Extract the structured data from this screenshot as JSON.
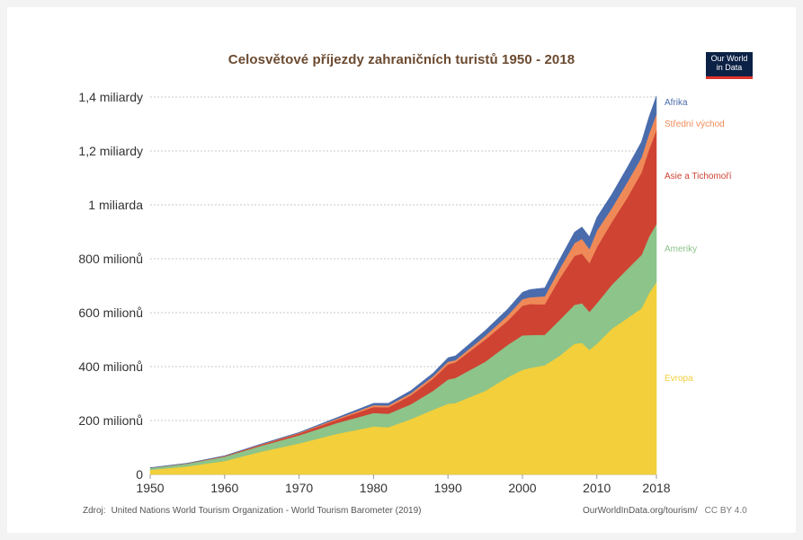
{
  "logo": {
    "line1": "Our World",
    "line2": "in Data"
  },
  "source": {
    "label": "Zdroj:",
    "text": "United Nations World Tourism Organization - World Tourism Barometer (2019)"
  },
  "credit": {
    "url": "OurWorldInData.org/tourism/",
    "license": "CC BY 4.0"
  },
  "chart_data": {
    "type": "area",
    "stacked": true,
    "title": "Celosvětové příjezdy zahraničních turistů 1950 - 2018",
    "xlabel": "",
    "ylabel": "",
    "xlim": [
      1950,
      2018
    ],
    "ylim": [
      0,
      1400000000
    ],
    "grid": true,
    "legend": "right-inline",
    "x": [
      1950,
      1955,
      1960,
      1965,
      1970,
      1975,
      1980,
      1982,
      1985,
      1988,
      1990,
      1991,
      1995,
      1998,
      2000,
      2001,
      2003,
      2005,
      2007,
      2008,
      2009,
      2010,
      2012,
      2014,
      2016,
      2017,
      2018
    ],
    "x_ticks": [
      1950,
      1960,
      1970,
      1980,
      1990,
      2000,
      2010,
      2018
    ],
    "y_ticks": [
      {
        "value": 0,
        "label": "0"
      },
      {
        "value": 200000000,
        "label": "200 milionů"
      },
      {
        "value": 400000000,
        "label": "400 milionů"
      },
      {
        "value": 600000000,
        "label": "600 milionů"
      },
      {
        "value": 800000000,
        "label": "800 milionů"
      },
      {
        "value": 1000000000,
        "label": "1 miliarda"
      },
      {
        "value": 1200000000,
        "label": "1,2 miliardy"
      },
      {
        "value": 1400000000,
        "label": "1,4 miliardy"
      }
    ],
    "series": [
      {
        "name": "Evropa",
        "color": "#f2cf3b",
        "values": [
          17000000,
          30000000,
          50000000,
          85000000,
          115000000,
          150000000,
          178000000,
          175000000,
          205000000,
          240000000,
          262000000,
          265000000,
          310000000,
          360000000,
          388000000,
          395000000,
          405000000,
          440000000,
          485000000,
          488000000,
          462000000,
          485000000,
          540000000,
          578000000,
          616000000,
          672000000,
          713000000
        ]
      },
      {
        "name": "Ameriky",
        "color": "#8cc48a",
        "values": [
          7000000,
          10000000,
          16000000,
          22000000,
          30000000,
          40000000,
          50000000,
          50000000,
          55000000,
          70000000,
          90000000,
          93000000,
          108000000,
          120000000,
          128000000,
          122000000,
          113000000,
          133000000,
          144000000,
          147000000,
          141000000,
          150000000,
          163000000,
          181000000,
          198000000,
          209000000,
          216000000
        ]
      },
      {
        "name": "Asie a Tichomoří",
        "color": "#cf4333",
        "values": [
          200000,
          800000,
          2000000,
          4000000,
          7000000,
          12000000,
          22000000,
          24000000,
          33000000,
          45000000,
          56000000,
          58000000,
          82000000,
          89000000,
          110000000,
          115000000,
          113000000,
          154000000,
          182000000,
          184000000,
          181000000,
          208000000,
          233000000,
          264000000,
          306000000,
          324000000,
          348000000
        ]
      },
      {
        "name": "Střední východ",
        "color": "#ef8a58",
        "values": [
          200000,
          400000,
          600000,
          1500000,
          2000000,
          4000000,
          7000000,
          7000000,
          8000000,
          9000000,
          10000000,
          8000000,
          14000000,
          20000000,
          24000000,
          25000000,
          30000000,
          36000000,
          47000000,
          55000000,
          52000000,
          61000000,
          51000000,
          57000000,
          56000000,
          58000000,
          60000000
        ]
      },
      {
        "name": "Afrika",
        "color": "#4a6cad",
        "values": [
          500000,
          600000,
          800000,
          1500000,
          2000000,
          4000000,
          7000000,
          8000000,
          10000000,
          12000000,
          15000000,
          16000000,
          20000000,
          24000000,
          26000000,
          29000000,
          31000000,
          35000000,
          41000000,
          44000000,
          46000000,
          50000000,
          52000000,
          55000000,
          58000000,
          63000000,
          67000000
        ]
      }
    ]
  }
}
